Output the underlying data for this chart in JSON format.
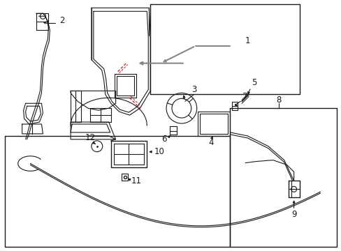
{
  "bg_color": "#ffffff",
  "lc": "#1a1a1a",
  "rc": "#ff0000",
  "gc": "#888888",
  "fig_width": 4.89,
  "fig_height": 3.6,
  "dpi": 100
}
